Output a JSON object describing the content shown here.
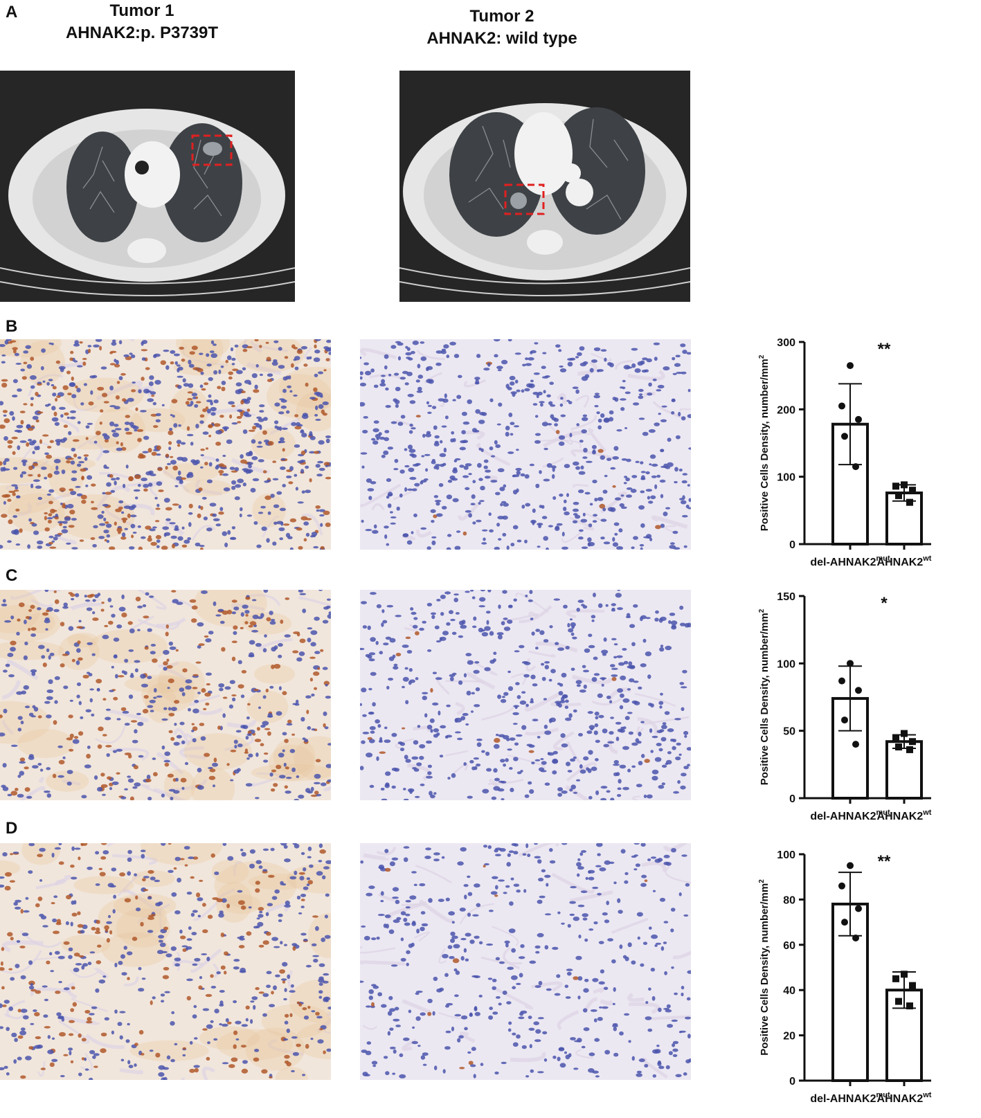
{
  "panel_labels": {
    "a": "A",
    "b": "B",
    "c": "C",
    "d": "D"
  },
  "tumor1": {
    "title": "Tumor 1",
    "mutation": "AHNAK2:p. P3739T"
  },
  "tumor2": {
    "title": "Tumor 2",
    "mutation": "AHNAK2: wild type"
  },
  "colors": {
    "ct_background": "#2a2a2a",
    "ct_tissue": "#e4e4e4",
    "lung": "#3f4246",
    "roi_box": "#e02020",
    "stain_nuclei": "#4a52a8",
    "stain_brown": "#b8642a",
    "stain_background": "#ece6f0",
    "bar_stroke": "#111111"
  },
  "chart_data": [
    {
      "panel": "B",
      "type": "bar",
      "categories": [
        "del-AHNAK2",
        "AHNAK2"
      ],
      "category_superscripts": [
        "mut",
        "wt"
      ],
      "ylabel": "Positive Cells Density, number/mm",
      "ylabel_superscript": "2",
      "ylim": [
        0,
        300
      ],
      "yticks": [
        0,
        100,
        200,
        300
      ],
      "values": [
        178,
        76
      ],
      "errors": [
        60,
        12
      ],
      "points": [
        [
          265,
          205,
          185,
          160,
          115
        ],
        [
          88,
          86,
          80,
          72,
          62
        ]
      ],
      "significance": "**"
    },
    {
      "panel": "C",
      "type": "bar",
      "categories": [
        "del-AHNAK2",
        "AHNAK2"
      ],
      "category_superscripts": [
        "mut",
        "wt"
      ],
      "ylabel": "Positive Cells Density, number/mm",
      "ylabel_superscript": "2",
      "ylim": [
        0,
        150
      ],
      "yticks": [
        0,
        50,
        100,
        150
      ],
      "values": [
        74,
        42
      ],
      "errors": [
        24,
        5
      ],
      "points": [
        [
          100,
          87,
          80,
          58,
          40
        ],
        [
          48,
          44,
          42,
          38,
          36
        ]
      ],
      "significance": "*"
    },
    {
      "panel": "D",
      "type": "bar",
      "categories": [
        "del-AHNAK2",
        "AHNAK2"
      ],
      "category_superscripts": [
        "mut",
        "wt"
      ],
      "ylabel": "Positive Cells Density, number/mm",
      "ylabel_superscript": "2",
      "ylim": [
        0,
        100
      ],
      "yticks": [
        0,
        20,
        40,
        60,
        80,
        100
      ],
      "values": [
        78,
        40
      ],
      "errors": [
        14,
        8
      ],
      "points": [
        [
          95,
          86,
          76,
          70,
          63
        ],
        [
          47,
          45,
          42,
          35,
          33
        ]
      ],
      "significance": "**"
    }
  ]
}
